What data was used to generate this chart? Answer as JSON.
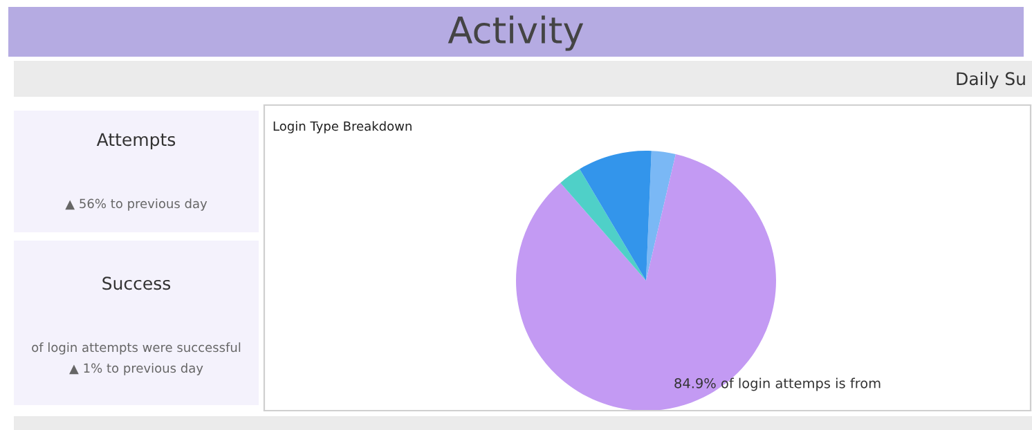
{
  "chart_data": [
    {
      "type": "other",
      "title": "Activity",
      "subtitle": "Daily Su"
    },
    {
      "type": "other",
      "title": "Attempts",
      "annotations": [
        "▲ 56% to previous day"
      ]
    },
    {
      "type": "other",
      "title": "Success",
      "annotations": [
        "of login attempts were successful",
        "▲ 1% to previous day"
      ]
    },
    {
      "type": "pie",
      "title": "Login Type Breakdown",
      "categories": [
        null,
        null,
        null,
        null
      ],
      "values": [
        3.0,
        84.9,
        2.9,
        9.2
      ],
      "colors": [
        "#7ab8f5",
        "#c39af3",
        "#4fd0c8",
        "#3395eb"
      ],
      "value_labels": [
        null,
        "84.9% of login attemps is from",
        null,
        null
      ]
    }
  ]
}
